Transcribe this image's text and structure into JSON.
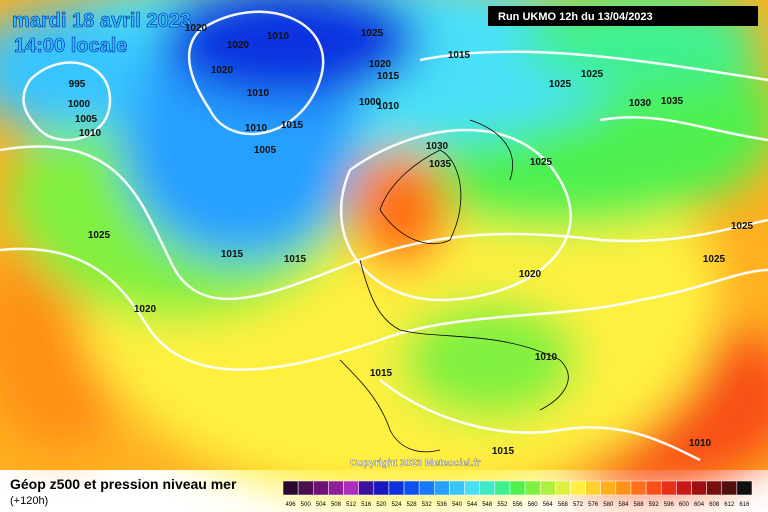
{
  "header": {
    "date": "mardi 18 avril 2023",
    "time": "14:00 locale",
    "run": "Run UKMO 12h du 13/04/2023"
  },
  "isobar_labels": [
    "1020",
    "1020",
    "1010",
    "1025",
    "1015",
    "1020",
    "1015",
    "995",
    "1020",
    "1010",
    "1000",
    "1005",
    "1010",
    "1000",
    "1010",
    "1025",
    "1025",
    "1030",
    "1035",
    "1010",
    "1015",
    "1005",
    "1030",
    "1035",
    "1025",
    "1025",
    "1015",
    "1015",
    "1025",
    "1025",
    "1020",
    "1020",
    "1010",
    "1015",
    "1015",
    "1010"
  ],
  "copyright": "Copyright 2023 Meteociel.fr",
  "footer": {
    "title": "Géop z500 et pression niveau mer",
    "lead": "(+120h)"
  },
  "scale": {
    "labels": [
      "496",
      "500",
      "504",
      "508",
      "512",
      "516",
      "520",
      "524",
      "528",
      "532",
      "536",
      "540",
      "544",
      "548",
      "552",
      "556",
      "560",
      "564",
      "568",
      "572",
      "576",
      "580",
      "584",
      "588",
      "592",
      "596",
      "600",
      "604",
      "608",
      "612",
      "616"
    ],
    "colors": [
      "#2a0a2a",
      "#4a0e4e",
      "#6c1474",
      "#8e1e9a",
      "#b02cc0",
      "#3a10a0",
      "#1818c0",
      "#1030e0",
      "#1050f8",
      "#1878ff",
      "#28a0ff",
      "#38c4ff",
      "#48e0f8",
      "#40e8c8",
      "#40f090",
      "#50f050",
      "#80f040",
      "#b0f040",
      "#e0f040",
      "#fff040",
      "#ffd030",
      "#ffb020",
      "#ff9018",
      "#ff7018",
      "#f85018",
      "#e83018",
      "#c81818",
      "#a01010",
      "#781010",
      "#501010",
      "#101010"
    ]
  }
}
